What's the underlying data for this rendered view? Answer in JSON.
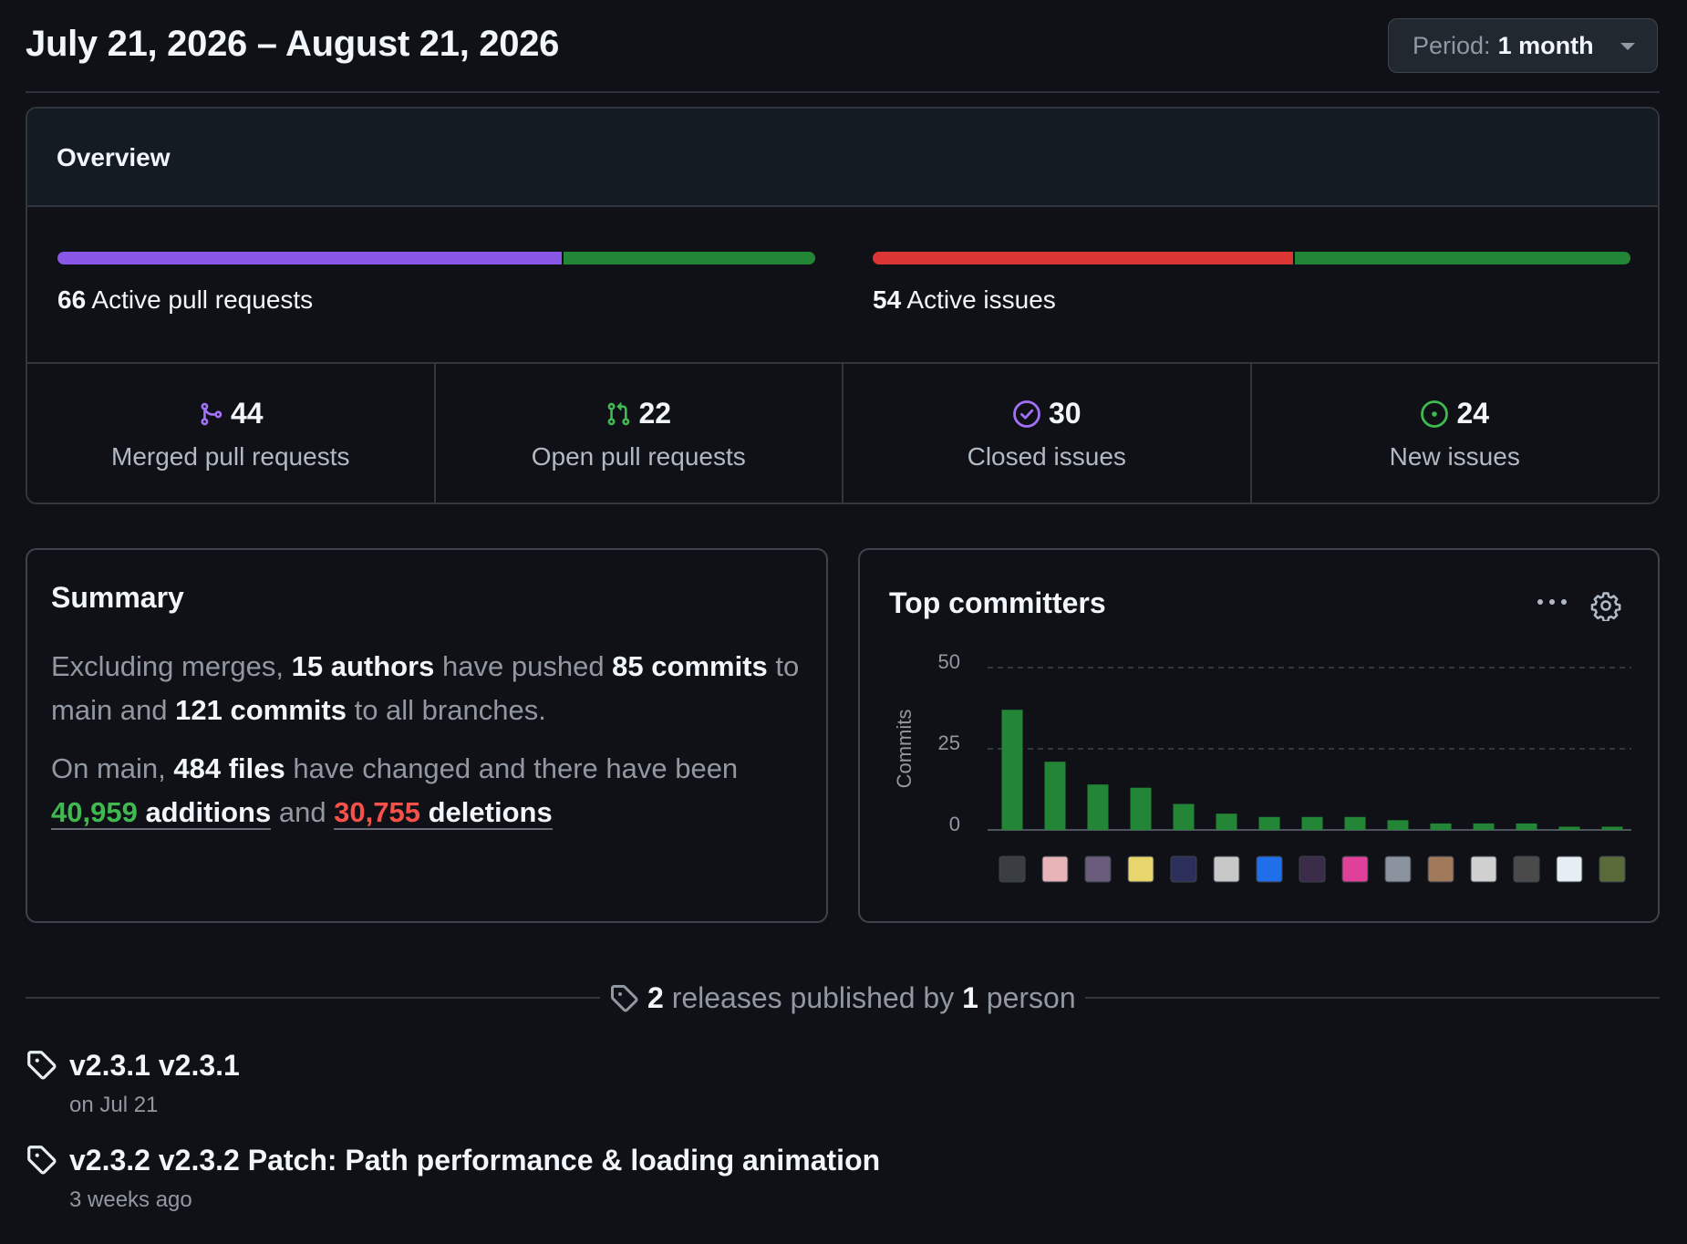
{
  "header": {
    "title": "July 21, 2026 – August 21, 2026",
    "period_label": "Period:",
    "period_value": "1 month"
  },
  "overview": {
    "title": "Overview",
    "pull_requests": {
      "count": "66",
      "label": "Active pull requests",
      "merged_fraction": 0.667,
      "colors": {
        "merged": "#8957e5",
        "open": "#238636"
      }
    },
    "issues": {
      "count": "54",
      "label": "Active issues",
      "closed_fraction": 0.556,
      "colors": {
        "closed": "#da3633",
        "new": "#238636"
      }
    },
    "stats": [
      {
        "icon": "merge-icon",
        "value": "44",
        "label": "Merged pull requests",
        "color": "#a371f7"
      },
      {
        "icon": "pull-request-icon",
        "value": "22",
        "label": "Open pull requests",
        "color": "#3fb950"
      },
      {
        "icon": "issue-closed-icon",
        "value": "30",
        "label": "Closed issues",
        "color": "#a371f7"
      },
      {
        "icon": "issue-opened-icon",
        "value": "24",
        "label": "New issues",
        "color": "#3fb950"
      }
    ]
  },
  "summary": {
    "title": "Summary",
    "p1_a": "Excluding merges, ",
    "authors": "15 authors",
    "p1_b": " have pushed ",
    "commits_main": "85 commits",
    "p1_c": " to main and ",
    "commits_all": "121 commits",
    "p1_d": " to all branches.",
    "p2_a": "On main, ",
    "files": "484 files",
    "p2_b": " have changed and there have been ",
    "additions_num": "40,959",
    "additions_word": " additions",
    "p2_c": " and ",
    "deletions_num": "30,755",
    "deletions_word": " deletions"
  },
  "committers": {
    "title": "Top committers",
    "icons": [
      "kebab-horizontal-icon",
      "gear-icon"
    ],
    "avatar_colors": [
      "#3a3d42",
      "#e8b4b8",
      "#6b5b7b",
      "#e8d56b",
      "#2b2f5a",
      "#c8c8c8",
      "#1f6feb",
      "#3b2c4a",
      "#e0409a",
      "#8b949e",
      "#a0785a",
      "#d0d0d0",
      "#4a4a4a",
      "#e6edf3",
      "#5a6b3a"
    ]
  },
  "chart_data": {
    "type": "bar",
    "ylabel": "Commits",
    "yticks": [
      "50",
      "25",
      "0"
    ],
    "ylim": [
      0,
      50
    ],
    "grid": true,
    "color": "#238636",
    "values": [
      37,
      21,
      14,
      13,
      8,
      5,
      4,
      4,
      4,
      3,
      2,
      2,
      2,
      1,
      1
    ]
  },
  "releases": {
    "count": "2",
    "text_a": " releases published by ",
    "people": "1",
    "text_b": " person",
    "items": [
      {
        "name": "v2.3.1 v2.3.1",
        "date": "on Jul 21"
      },
      {
        "name": "v2.3.2 v2.3.2 Patch: Path performance & loading animation",
        "date": "3 weeks ago"
      }
    ]
  }
}
